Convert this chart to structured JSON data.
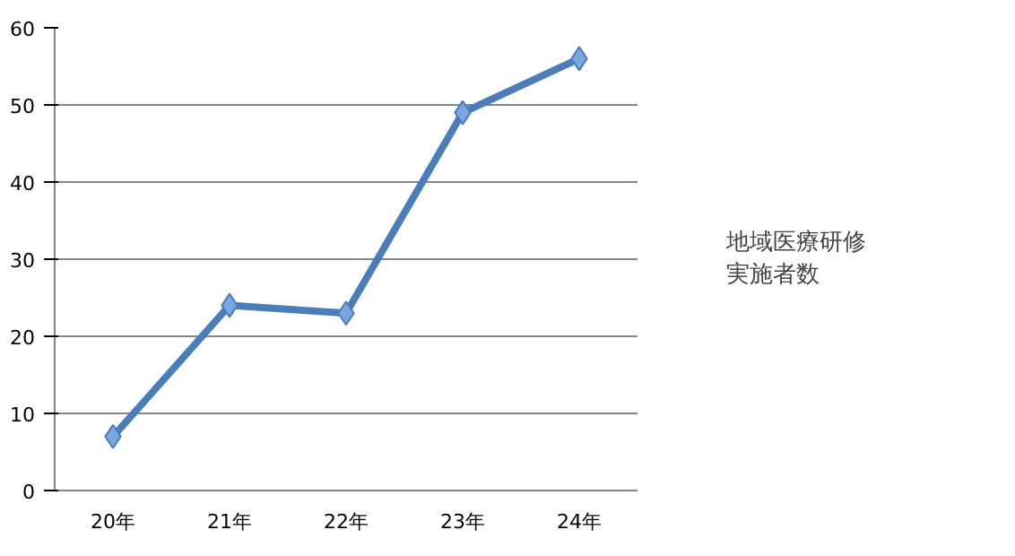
{
  "chart_data": {
    "type": "line",
    "categories": [
      "20年",
      "21年",
      "22年",
      "23年",
      "24年"
    ],
    "series": [
      {
        "name": "地域医療研修実施者数",
        "color": "#4a7ebb",
        "values": [
          7,
          24,
          23,
          49,
          56
        ]
      }
    ],
    "ylim": [
      0,
      60
    ],
    "yticks": [
      0,
      10,
      20,
      30,
      40,
      50,
      60
    ],
    "grid": "y",
    "legend": "right",
    "marker": "diamond",
    "line_style": "solid"
  }
}
